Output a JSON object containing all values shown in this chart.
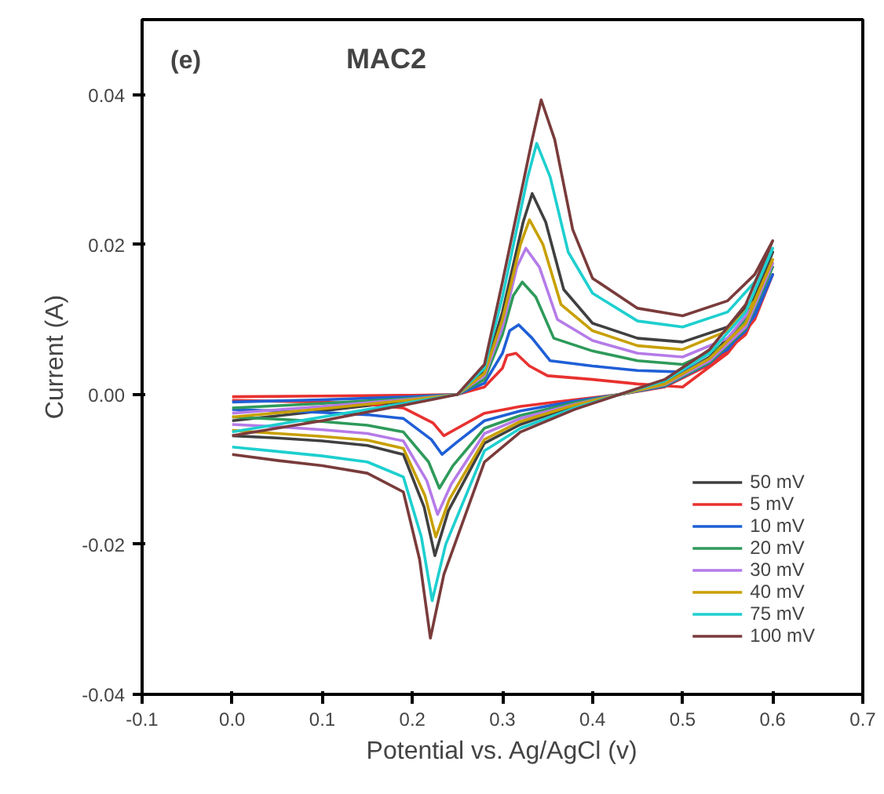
{
  "chart_data": {
    "type": "line",
    "title": "MAC2",
    "xlabel": "Potential vs. Ag/AgCl (v)",
    "ylabel": "Current (A)",
    "annotations": [
      "(e)"
    ],
    "xlim": [
      -0.1,
      0.7
    ],
    "ylim": [
      -0.04,
      0.05
    ],
    "xticks": [
      -0.1,
      {
        "value": 0,
        "label": "0.0"
      },
      0.1,
      0.2,
      0.3,
      0.4,
      0.5,
      0.6,
      0.7
    ],
    "yticks": [
      -0.04,
      -0.02,
      {
        "value": 0,
        "label": "0.00"
      },
      0.02,
      0.04
    ],
    "grid": false,
    "legend": "bottom right",
    "line_style": "solid",
    "series": [
      {
        "name": "50 mV",
        "color": "#404040",
        "x": [
          0,
          0.1,
          0.2,
          0.25,
          0.28,
          0.3,
          0.323,
          0.333,
          0.348,
          0.368,
          0.4,
          0.45,
          0.5,
          0.55,
          0.58,
          0.6,
          0.57,
          0.53,
          0.48,
          0.43,
          0.38,
          0.32,
          0.28,
          0.24,
          0.225,
          0.213,
          0.19,
          0.15,
          0.1,
          0.05,
          0
        ],
        "values": [
          -0.0035,
          -0.0022,
          -0.0008,
          0.0,
          0.003,
          0.011,
          0.023,
          0.0268,
          0.023,
          0.014,
          0.0095,
          0.0075,
          0.007,
          0.009,
          0.013,
          0.019,
          0.01,
          0.005,
          0.0015,
          0.0,
          -0.0015,
          -0.004,
          -0.0065,
          -0.0155,
          -0.0215,
          -0.015,
          -0.008,
          -0.0068,
          -0.0062,
          -0.0058,
          -0.0055
        ]
      },
      {
        "name": "5 mV",
        "color": "#e8312f",
        "x": [
          0,
          0.1,
          0.2,
          0.25,
          0.28,
          0.3,
          0.305,
          0.315,
          0.33,
          0.35,
          0.4,
          0.45,
          0.5,
          0.55,
          0.58,
          0.6,
          0.57,
          0.53,
          0.48,
          0.43,
          0.38,
          0.32,
          0.28,
          0.25,
          0.235,
          0.223,
          0.19,
          0.15,
          0.1,
          0.05,
          0
        ],
        "values": [
          -0.0003,
          -0.0002,
          -0.0001,
          0.0,
          0.001,
          0.0035,
          0.0052,
          0.0055,
          0.0038,
          0.0025,
          0.002,
          0.0014,
          0.001,
          0.0055,
          0.01,
          0.016,
          0.008,
          0.004,
          0.001,
          0.0,
          -0.0007,
          -0.0016,
          -0.0025,
          -0.0045,
          -0.0055,
          -0.0038,
          -0.0018,
          -0.0013,
          -0.001,
          -0.0009,
          -0.0008
        ]
      },
      {
        "name": "10 mV",
        "color": "#1f5fd6",
        "x": [
          0,
          0.1,
          0.2,
          0.25,
          0.28,
          0.3,
          0.308,
          0.318,
          0.333,
          0.353,
          0.4,
          0.45,
          0.5,
          0.55,
          0.58,
          0.6,
          0.57,
          0.53,
          0.48,
          0.43,
          0.38,
          0.32,
          0.28,
          0.248,
          0.233,
          0.221,
          0.19,
          0.15,
          0.1,
          0.05,
          0
        ],
        "values": [
          -0.001,
          -0.0007,
          -0.0003,
          0.0,
          0.0015,
          0.0055,
          0.0085,
          0.0093,
          0.0075,
          0.0045,
          0.0038,
          0.0032,
          0.003,
          0.006,
          0.0105,
          0.016,
          0.0085,
          0.0042,
          0.0011,
          0.0,
          -0.0009,
          -0.0022,
          -0.0035,
          -0.0065,
          -0.008,
          -0.006,
          -0.0032,
          -0.0027,
          -0.0024,
          -0.0022,
          -0.002
        ]
      },
      {
        "name": "20 mV",
        "color": "#2e9a5a",
        "x": [
          0,
          0.1,
          0.2,
          0.25,
          0.28,
          0.3,
          0.312,
          0.322,
          0.337,
          0.357,
          0.4,
          0.45,
          0.5,
          0.55,
          0.58,
          0.6,
          0.57,
          0.53,
          0.48,
          0.43,
          0.38,
          0.32,
          0.28,
          0.245,
          0.23,
          0.218,
          0.19,
          0.15,
          0.1,
          0.05,
          0
        ],
        "values": [
          -0.0018,
          -0.0012,
          -0.0005,
          0.0,
          0.002,
          0.008,
          0.0132,
          0.015,
          0.013,
          0.0075,
          0.0058,
          0.0045,
          0.004,
          0.0068,
          0.0115,
          0.017,
          0.0088,
          0.0043,
          0.0012,
          0.0,
          -0.0011,
          -0.0028,
          -0.0045,
          -0.0095,
          -0.0125,
          -0.009,
          -0.005,
          -0.0041,
          -0.0036,
          -0.0033,
          -0.003
        ]
      },
      {
        "name": "30 mV",
        "color": "#b57be8",
        "x": [
          0,
          0.1,
          0.2,
          0.25,
          0.28,
          0.3,
          0.316,
          0.326,
          0.341,
          0.361,
          0.4,
          0.45,
          0.5,
          0.55,
          0.58,
          0.6,
          0.57,
          0.53,
          0.48,
          0.43,
          0.38,
          0.32,
          0.28,
          0.243,
          0.228,
          0.216,
          0.19,
          0.15,
          0.1,
          0.05,
          0
        ],
        "values": [
          -0.0025,
          -0.0016,
          -0.0006,
          0.0,
          0.0025,
          0.009,
          0.017,
          0.0195,
          0.017,
          0.01,
          0.0072,
          0.0055,
          0.005,
          0.0075,
          0.012,
          0.0175,
          0.009,
          0.0045,
          0.0013,
          0.0,
          -0.0013,
          -0.0032,
          -0.0052,
          -0.012,
          -0.016,
          -0.0115,
          -0.0062,
          -0.0052,
          -0.0047,
          -0.0043,
          -0.004
        ]
      },
      {
        "name": "40 mV",
        "color": "#c8a000",
        "x": [
          0,
          0.1,
          0.2,
          0.25,
          0.28,
          0.3,
          0.32,
          0.33,
          0.345,
          0.365,
          0.4,
          0.45,
          0.5,
          0.55,
          0.58,
          0.6,
          0.57,
          0.53,
          0.48,
          0.43,
          0.38,
          0.32,
          0.28,
          0.241,
          0.226,
          0.214,
          0.19,
          0.15,
          0.1,
          0.05,
          0
        ],
        "values": [
          -0.003,
          -0.0019,
          -0.0007,
          0.0,
          0.0028,
          0.01,
          0.02,
          0.0233,
          0.02,
          0.012,
          0.0085,
          0.0065,
          0.006,
          0.0085,
          0.0125,
          0.018,
          0.0095,
          0.0048,
          0.0014,
          0.0,
          -0.0014,
          -0.0036,
          -0.006,
          -0.014,
          -0.019,
          -0.0135,
          -0.0072,
          -0.0061,
          -0.0056,
          -0.0052,
          -0.0048
        ]
      },
      {
        "name": "75 mV",
        "color": "#1ecfcf",
        "x": [
          0,
          0.1,
          0.2,
          0.25,
          0.28,
          0.3,
          0.328,
          0.338,
          0.353,
          0.373,
          0.4,
          0.45,
          0.5,
          0.55,
          0.58,
          0.6,
          0.57,
          0.53,
          0.48,
          0.43,
          0.38,
          0.32,
          0.28,
          0.237,
          0.222,
          0.21,
          0.19,
          0.15,
          0.1,
          0.05,
          0
        ],
        "values": [
          -0.005,
          -0.003,
          -0.001,
          0.0,
          0.0035,
          0.013,
          0.029,
          0.0335,
          0.029,
          0.019,
          0.0135,
          0.0098,
          0.009,
          0.011,
          0.015,
          0.0195,
          0.011,
          0.0055,
          0.0018,
          0.0,
          -0.0018,
          -0.0045,
          -0.0075,
          -0.02,
          -0.0275,
          -0.019,
          -0.011,
          -0.009,
          -0.0082,
          -0.0076,
          -0.007
        ]
      },
      {
        "name": "100 mV",
        "color": "#7a3b3b",
        "x": [
          0,
          0.1,
          0.2,
          0.25,
          0.28,
          0.3,
          0.333,
          0.343,
          0.358,
          0.378,
          0.4,
          0.45,
          0.5,
          0.55,
          0.58,
          0.6,
          0.57,
          0.53,
          0.48,
          0.43,
          0.38,
          0.32,
          0.28,
          0.235,
          0.22,
          0.208,
          0.19,
          0.15,
          0.1,
          0.05,
          0
        ],
        "values": [
          -0.0055,
          -0.0035,
          -0.0012,
          0.0,
          0.004,
          0.015,
          0.034,
          0.0393,
          0.034,
          0.022,
          0.0155,
          0.0115,
          0.0105,
          0.0125,
          0.016,
          0.0205,
          0.012,
          0.006,
          0.002,
          0.0,
          -0.002,
          -0.005,
          -0.009,
          -0.024,
          -0.0325,
          -0.022,
          -0.013,
          -0.0105,
          -0.0095,
          -0.0088,
          -0.008
        ]
      }
    ]
  }
}
